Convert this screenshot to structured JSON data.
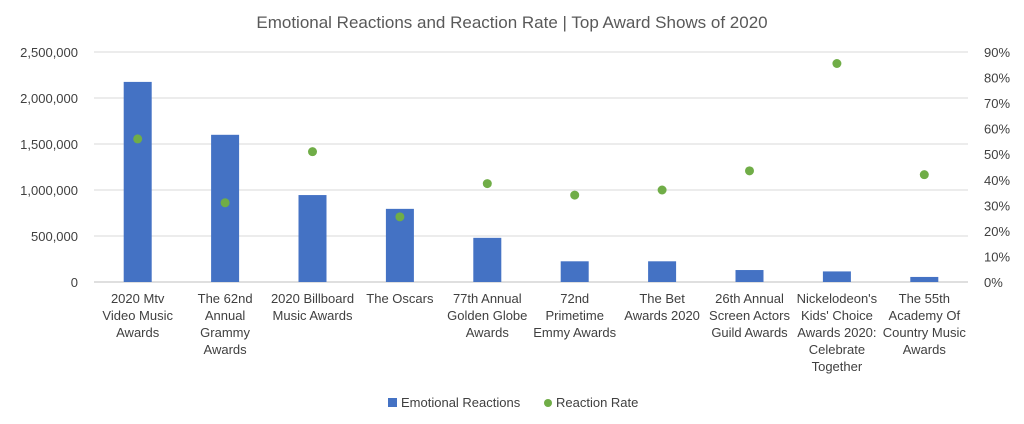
{
  "chart_data": {
    "type": "bar",
    "title": "Emotional Reactions and Reaction Rate | Top Award Shows of 2020",
    "categories": [
      [
        "2020 Mtv",
        "Video Music",
        "Awards"
      ],
      [
        "The 62nd",
        "Annual",
        "Grammy",
        "Awards"
      ],
      [
        "2020 Billboard",
        "Music Awards"
      ],
      [
        "The Oscars"
      ],
      [
        "77th Annual",
        "Golden Globe",
        "Awards"
      ],
      [
        "72nd",
        "Primetime",
        "Emmy Awards"
      ],
      [
        "The Bet",
        "Awards 2020"
      ],
      [
        "26th Annual",
        "Screen Actors",
        "Guild Awards"
      ],
      [
        "Nickelodeon's",
        "Kids' Choice",
        "Awards 2020:",
        "Celebrate",
        "Together"
      ],
      [
        "The 55th",
        "Academy Of",
        "Country Music",
        "Awards"
      ]
    ],
    "series": [
      {
        "name": "Emotional Reactions",
        "type": "bar",
        "axis": "left",
        "color": "#4472c4",
        "values": [
          2175000,
          1600000,
          945000,
          795000,
          480000,
          225000,
          225000,
          130000,
          115000,
          55000
        ]
      },
      {
        "name": "Reaction Rate",
        "type": "scatter",
        "axis": "right",
        "color": "#70ad47",
        "values": [
          0.56,
          0.31,
          0.51,
          0.255,
          0.385,
          0.34,
          0.36,
          0.435,
          0.855,
          0.42
        ]
      }
    ],
    "y_left": {
      "range": [
        0,
        2500000
      ],
      "ticks": [
        0,
        500000,
        1000000,
        1500000,
        2000000,
        2500000
      ],
      "tick_labels": [
        "0",
        "500,000",
        "1,000,000",
        "1,500,000",
        "2,000,000",
        "2,500,000"
      ]
    },
    "y_right": {
      "range": [
        0,
        0.9
      ],
      "ticks": [
        0,
        0.1,
        0.2,
        0.3,
        0.4,
        0.5,
        0.6,
        0.7,
        0.8,
        0.9
      ],
      "tick_labels": [
        "0%",
        "10%",
        "20%",
        "30%",
        "40%",
        "50%",
        "60%",
        "70%",
        "80%",
        "90%"
      ]
    },
    "grid": true,
    "legend": {
      "position": "bottom",
      "entries": [
        "Emotional Reactions",
        "Reaction Rate"
      ]
    }
  }
}
